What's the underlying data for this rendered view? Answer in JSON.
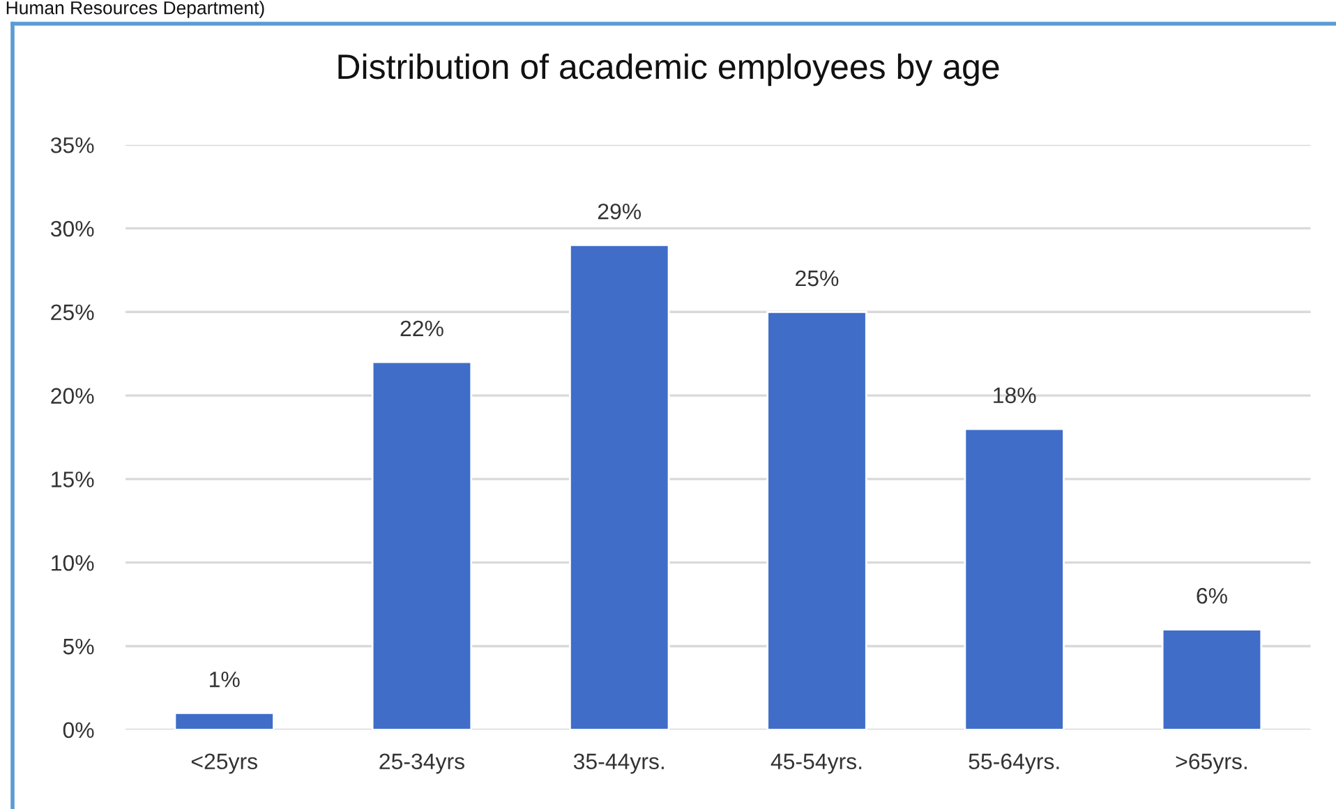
{
  "chart_data": {
    "type": "bar",
    "title": "Distribution of academic employees by age",
    "annotations": [
      "Human Resources Department)"
    ],
    "categories": [
      "<25yrs",
      "25-34yrs",
      "35-44yrs.",
      "45-54yrs.",
      "55-64yrs.",
      ">65yrs."
    ],
    "values": [
      1,
      22,
      29,
      25,
      18,
      6
    ],
    "value_labels": [
      "1%",
      "22%",
      "29%",
      "25%",
      "18%",
      "6%"
    ],
    "color": "#3f6dc8",
    "ylim": [
      0,
      35
    ],
    "yticks": [
      {
        "value": 0,
        "label": "0%"
      },
      {
        "value": 5,
        "label": "5%"
      },
      {
        "value": 10,
        "label": "10%"
      },
      {
        "value": 15,
        "label": "15%"
      },
      {
        "value": 20,
        "label": "20%"
      },
      {
        "value": 25,
        "label": "25%"
      },
      {
        "value": 30,
        "label": "30%"
      },
      {
        "value": 35,
        "label": "35%"
      }
    ],
    "grid": "y",
    "legend": false
  }
}
